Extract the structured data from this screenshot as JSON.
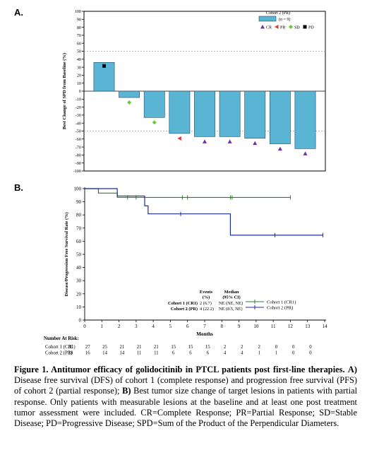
{
  "chart_data": [
    {
      "type": "bar",
      "panel_label": "A.",
      "ylabel": "Best Change of SPD from Baseline (%)",
      "ylim": [
        -100,
        100
      ],
      "yticks": [
        100,
        90,
        80,
        70,
        60,
        50,
        40,
        30,
        20,
        10,
        0,
        -10,
        -20,
        -30,
        -40,
        -50,
        -60,
        -70,
        -80,
        -90,
        -100
      ],
      "reference_lines": [
        50,
        0,
        -50
      ],
      "legend": {
        "title": "Cohort 2  (PR)",
        "n_label": "(n = 9)",
        "response_labels": [
          "CR",
          "PR",
          "SD",
          "PD"
        ],
        "placement": "top-right"
      },
      "bar_color": "#5ab4d4",
      "values": [
        36,
        -8,
        -33,
        -53,
        -57,
        -57,
        -59,
        -66,
        -72
      ],
      "responses": [
        "PD",
        "SD",
        "SD",
        "PR",
        "CR",
        "CR",
        "CR",
        "CR",
        "CR"
      ],
      "response_colors": {
        "CR": "#7030a0",
        "PR": "#e03c28",
        "SD": "#66cc33",
        "PD": "#000000"
      }
    },
    {
      "type": "line",
      "step": true,
      "panel_label": "B.",
      "xlabel": "Months",
      "ylabel": "Disease/Progression Free Survival Rate (%)",
      "xlim": [
        0,
        14
      ],
      "ylim": [
        0,
        100
      ],
      "xticks": [
        0,
        1,
        2,
        3,
        4,
        5,
        6,
        7,
        8,
        9,
        10,
        11,
        12,
        13,
        14
      ],
      "yticks": [
        0,
        10,
        20,
        30,
        40,
        50,
        60,
        70,
        80,
        90,
        100
      ],
      "series": [
        {
          "name": "Cohort 1 (CR1)",
          "color": "#2e7d32",
          "steps": [
            [
              0,
              100
            ],
            [
              0.8,
              100
            ],
            [
              0.8,
              96.6
            ],
            [
              1.9,
              96.6
            ],
            [
              1.9,
              93.3
            ],
            [
              12,
              93.3
            ]
          ],
          "censored": [
            [
              2.5,
              93.3
            ],
            [
              3.0,
              93.3
            ],
            [
              5.7,
              93.3
            ],
            [
              6.0,
              93.3
            ],
            [
              8.5,
              93.3
            ],
            [
              8.6,
              93.3
            ],
            [
              12,
              93.3
            ]
          ]
        },
        {
          "name": "Cohort 2 (PR)",
          "color": "#1f2fa0",
          "steps": [
            [
              0,
              100
            ],
            [
              1.9,
              100
            ],
            [
              1.9,
              94.4
            ],
            [
              3.5,
              94.4
            ],
            [
              3.5,
              86.9
            ],
            [
              3.7,
              86.9
            ],
            [
              3.7,
              80.8
            ],
            [
              8.5,
              80.8
            ],
            [
              8.5,
              64.6
            ],
            [
              13.9,
              64.6
            ]
          ],
          "censored": [
            [
              5.6,
              80.8
            ],
            [
              11.1,
              64.6
            ],
            [
              13.9,
              64.6
            ]
          ]
        }
      ],
      "summary_table": {
        "headers": [
          "Events (%)",
          "Median (95% CI)"
        ],
        "header_events_lines": [
          "Events",
          "(%)"
        ],
        "header_median_lines": [
          "Median",
          "(95% CI)"
        ],
        "rows": [
          {
            "label": "Cohort 1 (CR1)",
            "events": "2 (6.7)",
            "median": "NE (NE, NE)"
          },
          {
            "label": "Cohort 2 (PR)",
            "events": "4 (22.2)",
            "median": "NE (8.5, NE)"
          }
        ]
      },
      "risk_table": {
        "title": "Number At Risk:",
        "rows": [
          {
            "label": "Cohort 1 (CR1)",
            "values": [
              30,
              27,
              25,
              21,
              21,
              21,
              15,
              15,
              15,
              2,
              2,
              2,
              0,
              0,
              0
            ]
          },
          {
            "label": "Cohort 2 (PR)",
            "values": [
              18,
              16,
              14,
              14,
              11,
              11,
              6,
              6,
              6,
              4,
              4,
              1,
              1,
              0,
              0
            ]
          }
        ]
      }
    }
  ],
  "caption": {
    "title": "Figure 1. Antitumor efficacy of golidocitinib in PTCL patients post first-line therapies.",
    "part_a_label": "A)",
    "part_a_text": " Disease free survival (DFS) of cohort 1 (complete response) and progression free survival (PFS) of cohort 2 (partial response); ",
    "part_b_label": "B)",
    "part_b_text": " Best tumor size change of target lesions in patients with partial response. Only patients with measurable lesions at the baseline and at least one post treatment tumor assessment were included. CR=Complete Response; PR=Partial Response; SD=Stable Disease; PD=Progressive Disease; SPD=Sum of the Product of the Perpendicular Diameters."
  }
}
